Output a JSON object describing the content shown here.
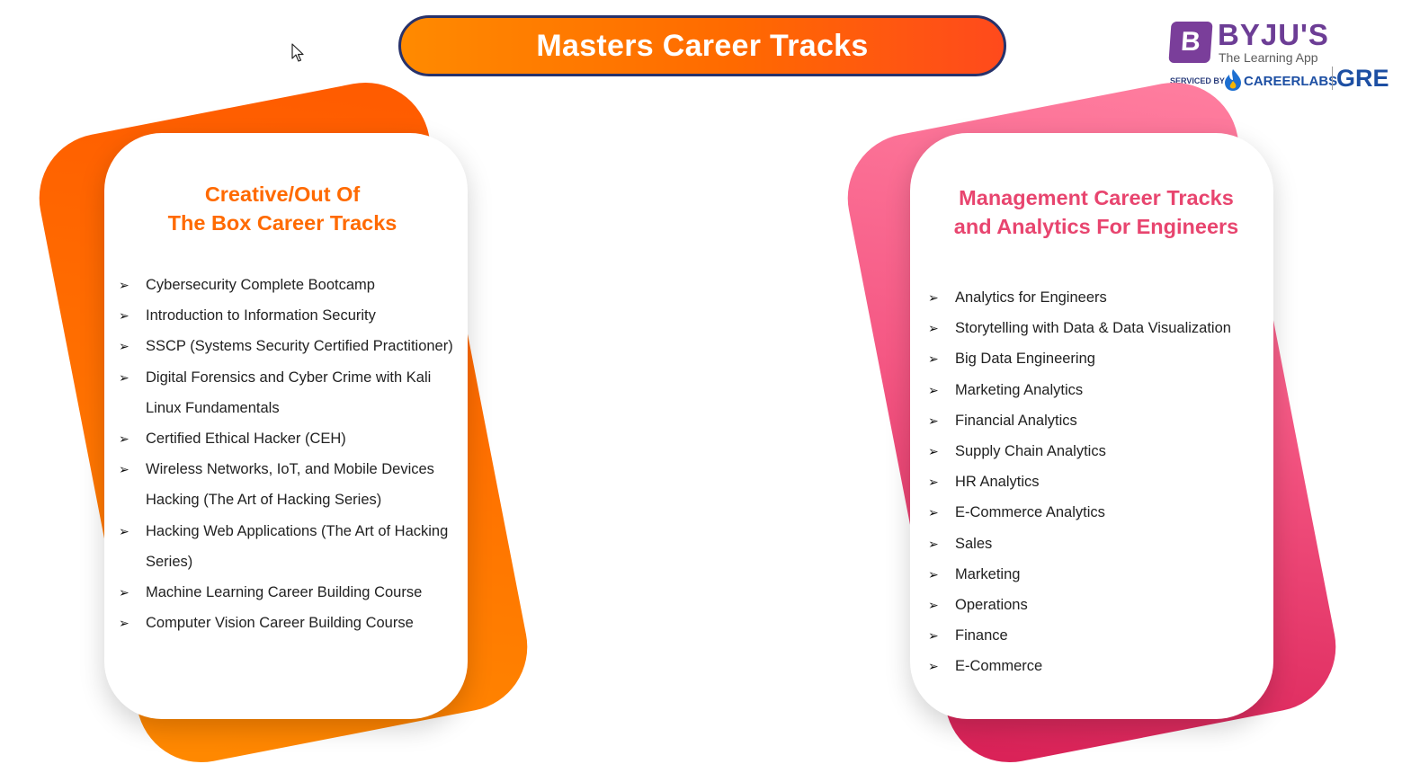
{
  "header": {
    "title": "Masters Career Tracks"
  },
  "logo": {
    "brand": "BYJU'S",
    "b_mark": "B",
    "tagline": "The Learning App",
    "serviced_by": "SERVICED BY",
    "partner": "CAREERLABS",
    "exam": "GRE"
  },
  "left_card": {
    "title_line1": "Creative/Out Of",
    "title_line2": "The Box Career Tracks",
    "title_color": "#ff6a00",
    "items": [
      "Cybersecurity Complete Bootcamp",
      "Introduction to Information Security",
      "SSCP (Systems Security Certified Practitioner)",
      "Digital Forensics and Cyber Crime with Kali Linux Fundamentals",
      "Certified Ethical Hacker (CEH)",
      "Wireless Networks, IoT, and Mobile Devices Hacking (The Art of Hacking Series)",
      "Hacking Web Applications (The Art of Hacking Series)",
      "Machine Learning Career Building Course",
      "Computer Vision Career Building Course"
    ]
  },
  "right_card": {
    "title_line1": "Management Career Tracks",
    "title_line2": "and Analytics For Engineers",
    "title_color": "#e8456f",
    "items": [
      "Analytics for Engineers",
      "Storytelling with Data & Data Visualization",
      "Big Data Engineering",
      "Marketing Analytics",
      "Financial Analytics",
      "Supply Chain Analytics",
      "HR Analytics",
      "E-Commerce Analytics",
      "Sales",
      "Marketing",
      "Operations",
      "Finance",
      "E-Commerce"
    ]
  },
  "colors": {
    "orange_accent": "#ff6a00",
    "pink_accent": "#e8456f",
    "pill_border": "#27326b",
    "brand_purple": "#6c3d95"
  },
  "icons": {
    "bullet": "arrowhead-bullet-icon",
    "cursor": "mouse-pointer-icon"
  }
}
